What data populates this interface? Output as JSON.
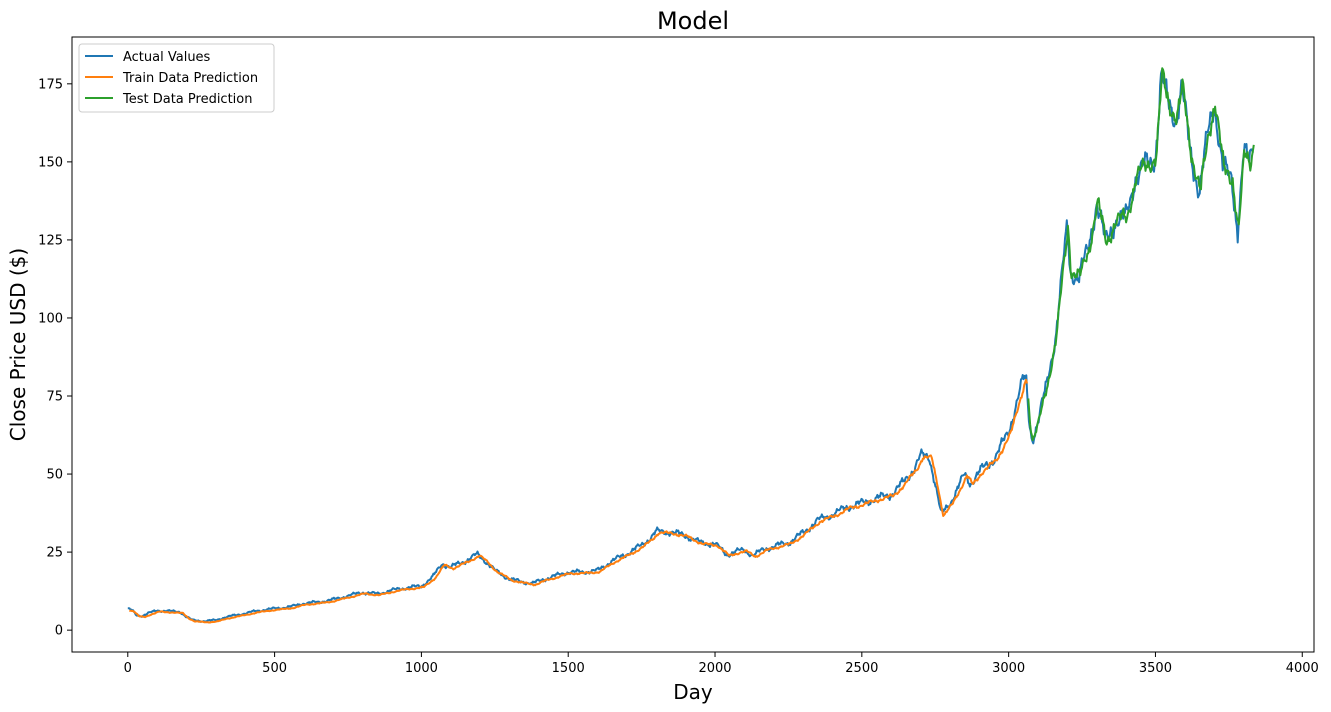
{
  "chart_data": {
    "type": "line",
    "title": "Model",
    "xlabel": "Day",
    "ylabel": "Close Price USD ($)",
    "xlim": [
      -190,
      4040
    ],
    "ylim": [
      -7,
      190
    ],
    "xticks": [
      0,
      500,
      1000,
      1500,
      2000,
      2500,
      3000,
      3500,
      4000
    ],
    "yticks": [
      0,
      25,
      50,
      75,
      100,
      125,
      150,
      175
    ],
    "grid": false,
    "legend_position": "top-left",
    "anchors": [
      [
        0,
        6.8
      ],
      [
        15,
        6.3
      ],
      [
        30,
        4.8
      ],
      [
        50,
        4.6
      ],
      [
        70,
        5.4
      ],
      [
        100,
        6.3
      ],
      [
        140,
        6.1
      ],
      [
        180,
        5.8
      ],
      [
        200,
        4.2
      ],
      [
        220,
        3.2
      ],
      [
        260,
        2.9
      ],
      [
        300,
        3.2
      ],
      [
        330,
        4.1
      ],
      [
        380,
        5.0
      ],
      [
        420,
        5.8
      ],
      [
        470,
        6.6
      ],
      [
        520,
        7.1
      ],
      [
        560,
        7.6
      ],
      [
        600,
        8.6
      ],
      [
        650,
        9.0
      ],
      [
        700,
        9.8
      ],
      [
        750,
        11.0
      ],
      [
        800,
        12.1
      ],
      [
        850,
        11.6
      ],
      [
        900,
        12.8
      ],
      [
        950,
        13.6
      ],
      [
        1000,
        14.1
      ],
      [
        1040,
        17.2
      ],
      [
        1070,
        21.2
      ],
      [
        1100,
        20.2
      ],
      [
        1150,
        22.2
      ],
      [
        1190,
        24.3
      ],
      [
        1220,
        22.0
      ],
      [
        1250,
        19.1
      ],
      [
        1300,
        16.4
      ],
      [
        1340,
        15.5
      ],
      [
        1380,
        15.0
      ],
      [
        1420,
        16.4
      ],
      [
        1460,
        17.5
      ],
      [
        1500,
        18.6
      ],
      [
        1550,
        18.6
      ],
      [
        1600,
        19.1
      ],
      [
        1650,
        22.2
      ],
      [
        1700,
        24.5
      ],
      [
        1750,
        27.2
      ],
      [
        1780,
        29.6
      ],
      [
        1800,
        31.6
      ],
      [
        1850,
        31.4
      ],
      [
        1900,
        30.3
      ],
      [
        1950,
        28.0
      ],
      [
        2000,
        27.6
      ],
      [
        2040,
        24.2
      ],
      [
        2080,
        25.4
      ],
      [
        2100,
        25.6
      ],
      [
        2130,
        24.0
      ],
      [
        2170,
        26.0
      ],
      [
        2210,
        27.1
      ],
      [
        2250,
        28.0
      ],
      [
        2300,
        31.2
      ],
      [
        2350,
        35.2
      ],
      [
        2400,
        37.0
      ],
      [
        2450,
        39.4
      ],
      [
        2500,
        40.7
      ],
      [
        2550,
        42.2
      ],
      [
        2600,
        43.4
      ],
      [
        2640,
        47.2
      ],
      [
        2680,
        52.0
      ],
      [
        2700,
        55.8
      ],
      [
        2730,
        55.5
      ],
      [
        2750,
        47.0
      ],
      [
        2770,
        37.0
      ],
      [
        2800,
        40.6
      ],
      [
        2830,
        46.1
      ],
      [
        2850,
        49.8
      ],
      [
        2870,
        47.0
      ],
      [
        2900,
        50.8
      ],
      [
        2950,
        54.8
      ],
      [
        3000,
        63.4
      ],
      [
        3030,
        74.0
      ],
      [
        3050,
        80.5
      ],
      [
        3060,
        79.5
      ],
      [
        3070,
        67.0
      ],
      [
        3080,
        61.0
      ],
      [
        3100,
        66.5
      ],
      [
        3130,
        79.0
      ],
      [
        3160,
        94.0
      ],
      [
        3190,
        121.0
      ],
      [
        3200,
        130.0
      ],
      [
        3210,
        115.0
      ],
      [
        3240,
        113.0
      ],
      [
        3270,
        122.0
      ],
      [
        3300,
        137.0
      ],
      [
        3330,
        124.0
      ],
      [
        3360,
        131.0
      ],
      [
        3400,
        132.0
      ],
      [
        3430,
        145.0
      ],
      [
        3460,
        148.0
      ],
      [
        3500,
        152.0
      ],
      [
        3520,
        177.0
      ],
      [
        3540,
        170.0
      ],
      [
        3570,
        164.0
      ],
      [
        3590,
        173.0
      ],
      [
        3620,
        153.0
      ],
      [
        3650,
        140.0
      ],
      [
        3680,
        160.0
      ],
      [
        3700,
        170.0
      ],
      [
        3730,
        147.0
      ],
      [
        3760,
        145.0
      ],
      [
        3780,
        128.0
      ],
      [
        3800,
        152.0
      ],
      [
        3820,
        150.0
      ],
      [
        3835,
        158.0
      ]
    ],
    "series": [
      {
        "name": "Actual Values",
        "color": "#1f77b4",
        "x_range": [
          0,
          3835
        ],
        "noise": 1.3
      },
      {
        "name": "Train Data Prediction",
        "color": "#ff7f0e",
        "x_range": [
          5,
          3066
        ],
        "noise": 0.6
      },
      {
        "name": "Test Data Prediction",
        "color": "#2ca02c",
        "x_range": [
          3067,
          3835
        ],
        "noise": 1.0
      }
    ]
  }
}
